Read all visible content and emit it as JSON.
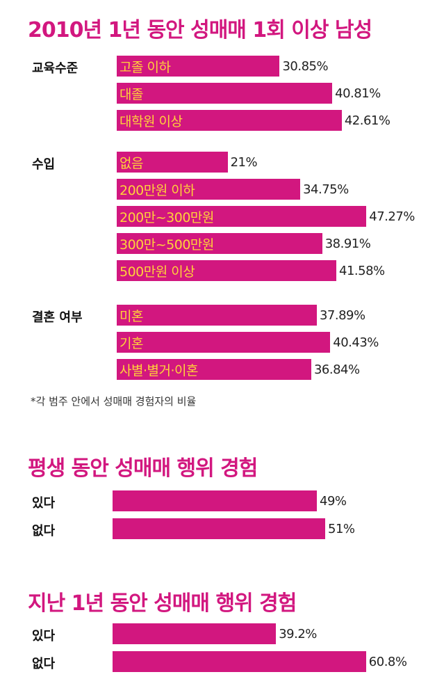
{
  "chart_data": [
    {
      "type": "bar",
      "title": "2010년 1년 동안 성매매 1회 이상 남성",
      "groups": [
        {
          "name": "교육수준",
          "categories": [
            "고졸 이하",
            "대졸",
            "대학원 이상"
          ],
          "values": [
            30.85,
            40.81,
            42.61
          ],
          "value_labels": [
            "30.85%",
            "40.81%",
            "42.61%"
          ]
        },
        {
          "name": "수입",
          "categories": [
            "없음",
            "200만원 이하",
            "200만~300만원",
            "300만~500만원",
            "500만원 이상"
          ],
          "values": [
            21,
            34.75,
            47.27,
            38.91,
            41.58
          ],
          "value_labels": [
            "21%",
            "34.75%",
            "47.27%",
            "38.91%",
            "41.58%"
          ]
        },
        {
          "name": "결혼 여부",
          "categories": [
            "미혼",
            "기혼",
            "사별·별거·이혼"
          ],
          "values": [
            37.89,
            40.43,
            36.84
          ],
          "value_labels": [
            "37.89%",
            "40.43%",
            "36.84%"
          ]
        }
      ],
      "footnote": "*각 범주 안에서 성매매 경험자의 비율"
    },
    {
      "type": "bar",
      "title": "평생 동안 성매매 행위 경험",
      "categories": [
        "있다",
        "없다"
      ],
      "values": [
        49,
        51
      ],
      "value_labels": [
        "49%",
        "51%"
      ]
    },
    {
      "type": "bar",
      "title": "지난 1년 동안 성매매 행위 경험",
      "categories": [
        "있다",
        "없다"
      ],
      "values": [
        39.2,
        60.8
      ],
      "value_labels": [
        "39.2%",
        "60.8%"
      ]
    }
  ],
  "colors": {
    "bar": "#d2177f",
    "bar_label": "#ffd23a",
    "title": "#d2177f"
  }
}
